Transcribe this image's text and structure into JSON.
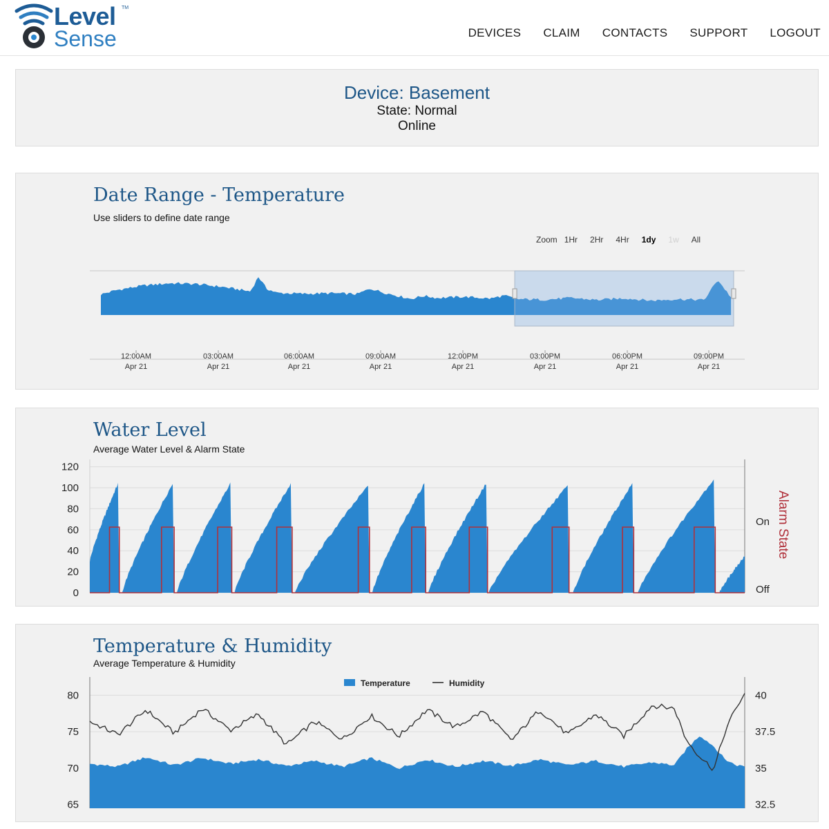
{
  "brand": {
    "name_line1": "Level",
    "name_line2": "Sense",
    "tm": "TM"
  },
  "nav": [
    "DEVICES",
    "CLAIM",
    "CONTACTS",
    "SUPPORT",
    "LOGOUT"
  ],
  "device": {
    "title": "Device: Basement",
    "state": "State: Normal",
    "status": "Online"
  },
  "date_range": {
    "title": "Date Range - Temperature",
    "subtitle": "Use sliders to define date range",
    "zoom_label": "Zoom",
    "zoom_options": [
      "1Hr",
      "2Hr",
      "4Hr",
      "1dy",
      "1w",
      "All"
    ],
    "zoom_selected": "1dy",
    "zoom_disabled": "1w"
  },
  "water_level": {
    "title": "Water Level",
    "subtitle": "Average Water Level & Alarm State"
  },
  "temp_humidity": {
    "title": "Temperature & Humidity",
    "subtitle": "Average Temperature & Humidity"
  },
  "colors": {
    "series_blue": "#2a86cf",
    "alarm_red": "#b0303a",
    "title_blue": "#1d5687",
    "humidity_line": "#333333"
  },
  "chart_data": [
    {
      "type": "area",
      "title": "Date Range - Temperature",
      "x_ticks": [
        {
          "time": "12:00AM",
          "date": "Apr 21"
        },
        {
          "time": "03:00AM",
          "date": "Apr 21"
        },
        {
          "time": "06:00AM",
          "date": "Apr 21"
        },
        {
          "time": "09:00AM",
          "date": "Apr 21"
        },
        {
          "time": "12:00PM",
          "date": "Apr 21"
        },
        {
          "time": "03:00PM",
          "date": "Apr 21"
        },
        {
          "time": "06:00PM",
          "date": "Apr 21"
        },
        {
          "time": "09:00PM",
          "date": "Apr 21"
        }
      ],
      "x_hours": [
        -0.6,
        0,
        1,
        2,
        3,
        4,
        5,
        5.3,
        5.6,
        6,
        7,
        8,
        9,
        9.5,
        10,
        11,
        11.5,
        12,
        13,
        14,
        14.5,
        15,
        16,
        17,
        18,
        19,
        20,
        21,
        22,
        22.5,
        23
      ],
      "values": [
        72,
        73.5,
        75,
        75.8,
        75.5,
        74.5,
        73,
        78,
        74,
        72.5,
        72.2,
        72.4,
        72.1,
        74,
        72.6,
        70.5,
        71.5,
        70.8,
        71.2,
        70.6,
        71.6,
        70.4,
        70.2,
        70.8,
        70.1,
        70.7,
        69.9,
        70.4,
        70.1,
        77,
        71
      ],
      "ylim": [
        65,
        80
      ],
      "selection_hours": [
        14.9,
        23.1
      ]
    },
    {
      "type": "area",
      "title": "Water Level",
      "subtitle": "Average Water Level & Alarm State",
      "y_ticks": [
        0,
        20,
        40,
        60,
        80,
        100,
        120
      ],
      "y2_ticks": [
        "Off",
        "On"
      ],
      "y2_label": "Alarm State",
      "ylim": [
        0,
        127
      ],
      "series": [
        {
          "name": "Water Level",
          "cycles": [
            {
              "start": 0,
              "peak": 1.0,
              "end": 1.05,
              "start_value": 30,
              "peak_value": 104
            },
            {
              "start": 1.15,
              "peak": 2.95,
              "end": 3.0,
              "start_value": 0,
              "peak_value": 104
            },
            {
              "start": 3.1,
              "peak": 5.0,
              "end": 5.05,
              "start_value": 0,
              "peak_value": 104
            },
            {
              "start": 5.15,
              "peak": 7.15,
              "end": 7.2,
              "start_value": 0,
              "peak_value": 104
            },
            {
              "start": 7.3,
              "peak": 9.9,
              "end": 9.95,
              "start_value": 0,
              "peak_value": 102
            },
            {
              "start": 10.05,
              "peak": 11.9,
              "end": 11.95,
              "start_value": 0,
              "peak_value": 104
            },
            {
              "start": 12.05,
              "peak": 14.1,
              "end": 14.15,
              "start_value": 0,
              "peak_value": 104
            },
            {
              "start": 14.2,
              "peak": 17.0,
              "end": 17.05,
              "start_value": 0,
              "peak_value": 102
            },
            {
              "start": 17.2,
              "peak": 19.3,
              "end": 19.35,
              "start_value": 0,
              "peak_value": 104
            },
            {
              "start": 19.5,
              "peak": 22.2,
              "end": 22.25,
              "start_value": 0,
              "peak_value": 108
            },
            {
              "start": 22.4,
              "peak": 23.3,
              "end": 23.3,
              "start_value": 0,
              "peak_value": 35
            }
          ]
        },
        {
          "name": "Alarm State",
          "on_intervals": [
            [
              0.7,
              1.05
            ],
            [
              2.55,
              3.0
            ],
            [
              4.55,
              5.05
            ],
            [
              6.65,
              7.2
            ],
            [
              9.55,
              9.95
            ],
            [
              11.45,
              11.95
            ],
            [
              13.5,
              14.15
            ],
            [
              16.45,
              17.05
            ],
            [
              18.95,
              19.35
            ],
            [
              21.5,
              22.25
            ]
          ]
        }
      ]
    },
    {
      "type": "area",
      "title": "Temperature & Humidity",
      "subtitle": "Average Temperature & Humidity",
      "y_ticks": [
        65,
        70,
        75,
        80
      ],
      "y2_ticks": [
        32.5,
        35,
        37.5,
        40
      ],
      "ylim": [
        64.5,
        82.5
      ],
      "y2lim": [
        32.25,
        41.25
      ],
      "x_hours": [
        0,
        1,
        2,
        3,
        4,
        5,
        6,
        7,
        8,
        9,
        10,
        11,
        12,
        13,
        14,
        15,
        16,
        17,
        18,
        19,
        20,
        20.8,
        21.2,
        21.7,
        22.2,
        22.6,
        23,
        23.3
      ],
      "series": [
        {
          "name": "Temperature",
          "axis": "left",
          "values": [
            70.6,
            70.2,
            71.5,
            70.4,
            71.4,
            70.6,
            71.2,
            70.3,
            71.0,
            70.2,
            71.4,
            70.0,
            71.2,
            70.2,
            71.0,
            70.3,
            71.2,
            70.4,
            71.0,
            70.2,
            70.8,
            70.4,
            72.5,
            74.5,
            73.0,
            71.2,
            70.4,
            70.3
          ]
        },
        {
          "name": "Humidity",
          "axis": "right",
          "values": [
            38.2,
            37.3,
            39.0,
            37.4,
            39.1,
            37.6,
            38.7,
            36.6,
            38.2,
            37.0,
            38.6,
            37.2,
            39.0,
            37.8,
            38.9,
            36.9,
            39.0,
            37.3,
            38.7,
            37.2,
            39.3,
            39.1,
            37.0,
            35.8,
            34.9,
            37.5,
            39.2,
            40.0
          ]
        }
      ]
    }
  ]
}
